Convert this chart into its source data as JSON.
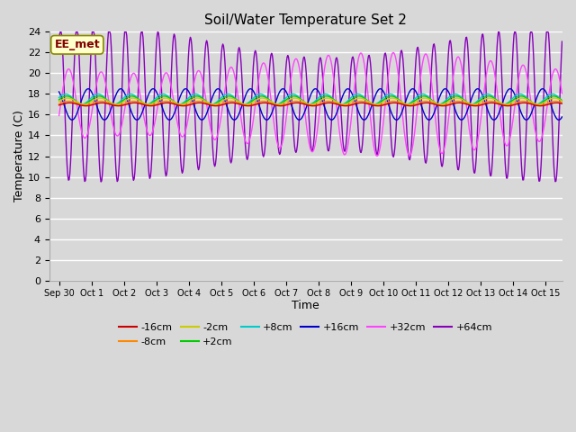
{
  "title": "Soil/Water Temperature Set 2",
  "xlabel": "Time",
  "ylabel": "Temperature (C)",
  "ylim": [
    0,
    24
  ],
  "yticks": [
    0,
    2,
    4,
    6,
    8,
    10,
    12,
    14,
    16,
    18,
    20,
    22,
    24
  ],
  "xtick_labels": [
    "Sep 30",
    "Oct 1",
    "Oct 2",
    "Oct 3",
    "Oct 4",
    "Oct 5",
    "Oct 6",
    "Oct 7",
    "Oct 8",
    "Oct 9",
    "Oct 10",
    "Oct 11",
    "Oct 12",
    "Oct 13",
    "Oct 14",
    "Oct 15"
  ],
  "xtick_positions": [
    0,
    1,
    2,
    3,
    4,
    5,
    6,
    7,
    8,
    9,
    10,
    11,
    12,
    13,
    14,
    15
  ],
  "col_m16": "#cc0000",
  "col_m8": "#ff8800",
  "col_m2": "#cccc00",
  "col_p2": "#00cc00",
  "col_p8": "#00cccc",
  "col_p16": "#0000cc",
  "col_p32": "#ff44ff",
  "col_p64": "#8800bb",
  "annotation_text": "EE_met",
  "annotation_color": "#800000",
  "annotation_bg": "#ffffcc",
  "annotation_edge": "#888800",
  "plot_bg": "#d8d8d8",
  "grid_color": "#ffffff",
  "fig_bg": "#d8d8d8"
}
